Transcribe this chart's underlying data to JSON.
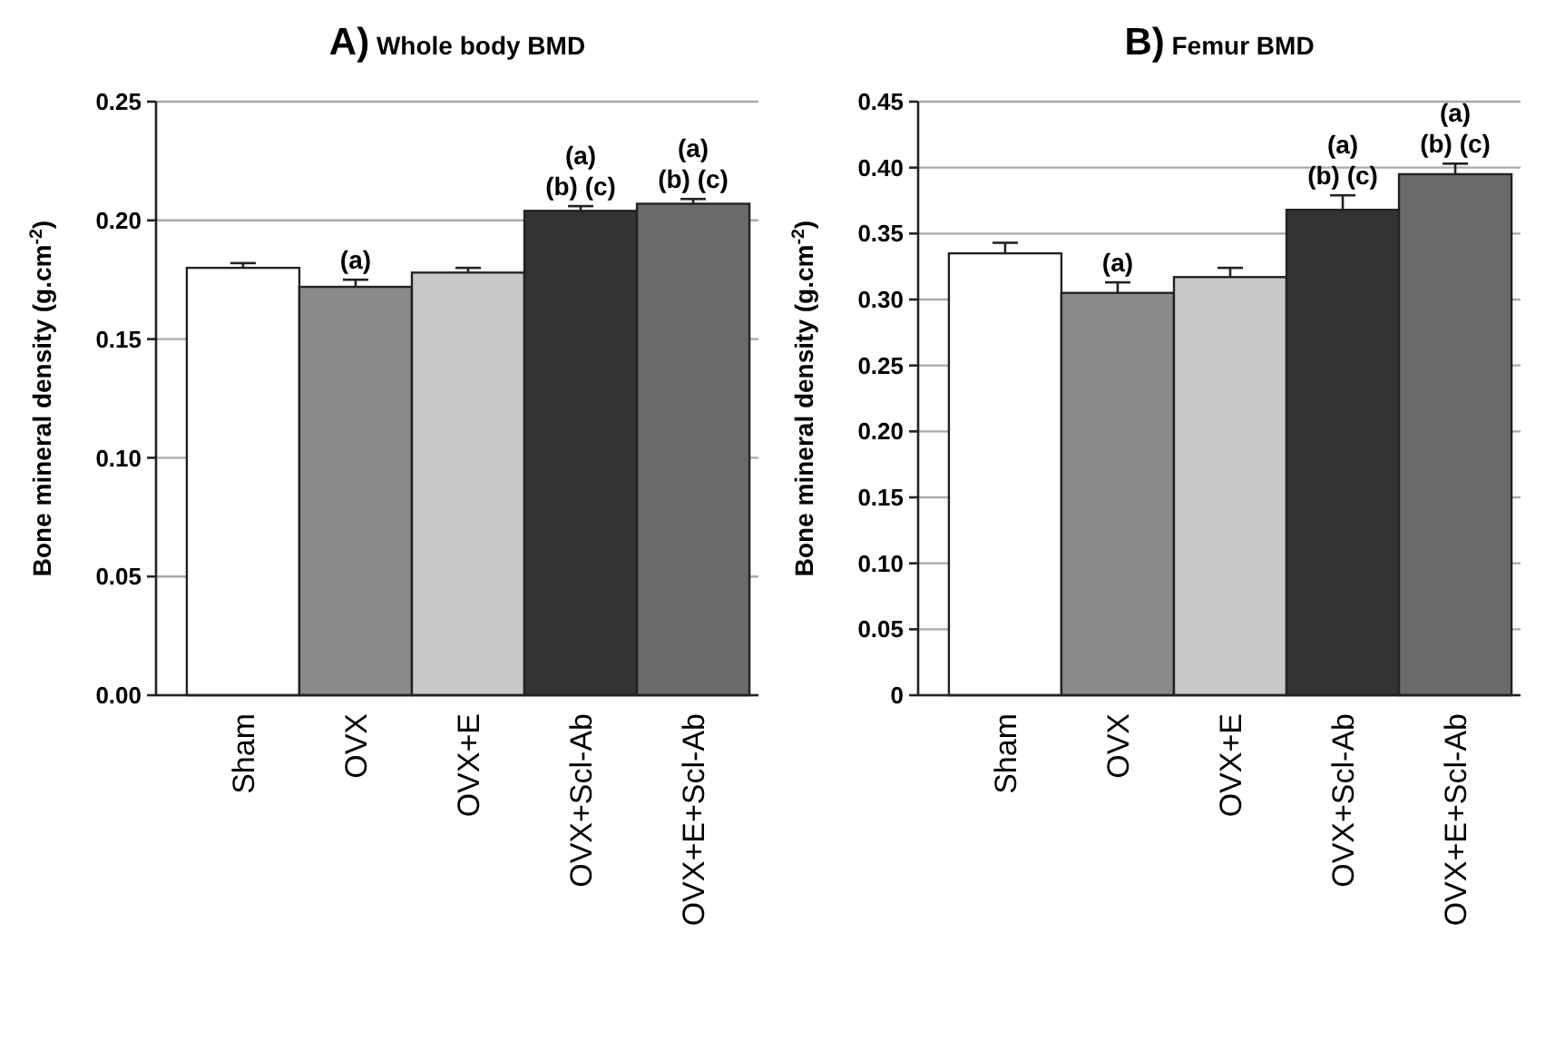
{
  "chart_data": [
    {
      "type": "bar",
      "title": "A) Whole body BMD",
      "ylabel": "Bone mineral density (g.cm$^{-2}$)",
      "categories": [
        "Sham",
        "OVX",
        "OVX+E",
        "OVX+Scl-Ab",
        "OVX+E+Scl-Ab"
      ],
      "values": [
        0.18,
        0.172,
        0.178,
        0.204,
        0.207
      ],
      "errors": [
        0.002,
        0.003,
        0.002,
        0.002,
        0.002
      ],
      "colors": [
        "#ffffff",
        "#8a8a8a",
        "#c8c8c8",
        "#333333",
        "#6a6a6a"
      ],
      "ylim": [
        0,
        0.25
      ],
      "yticks": [
        {
          "value": 0,
          "label": "0.00"
        },
        {
          "value": 0.05,
          "label": "0.05"
        },
        {
          "value": 0.1,
          "label": "0.10"
        },
        {
          "value": 0.15,
          "label": "0.15"
        },
        {
          "value": 0.2,
          "label": "0.20"
        },
        {
          "value": 0.25,
          "label": "0.25"
        }
      ],
      "grid": "y",
      "annotations": [
        {
          "text": "(a)",
          "x": "OVX",
          "y": 0.172
        },
        {
          "text": "(b) (c)",
          "x": "OVX+Scl-Ab",
          "y": 0.204
        },
        {
          "text": "(a)",
          "x": "OVX+Scl-Ab",
          "y": 0.204
        },
        {
          "text": "(b) (c)",
          "x": "OVX+E+Scl-Ab",
          "y": 0.207
        },
        {
          "text": "(a)",
          "x": "OVX+E+Scl-Ab",
          "y": 0.207
        }
      ]
    },
    {
      "type": "bar",
      "title": "B) Femur BMD",
      "ylabel": "Bone mineral density (g.cm$^{-2}$)",
      "categories": [
        "Sham",
        "OVX",
        "OVX+E",
        "OVX+Scl-Ab",
        "OVX+E+Scl-Ab"
      ],
      "values": [
        0.335,
        0.305,
        0.317,
        0.368,
        0.395
      ],
      "errors": [
        0.008,
        0.008,
        0.007,
        0.011,
        0.008
      ],
      "colors": [
        "#ffffff",
        "#8a8a8a",
        "#c8c8c8",
        "#333333",
        "#6a6a6a"
      ],
      "ylim": [
        0,
        0.45
      ],
      "yticks": [
        0,
        0.05,
        {
          "value": 0.1,
          "label": "0.10"
        },
        0.15,
        {
          "value": 0.2,
          "label": "0.20"
        },
        0.25,
        {
          "value": 0.3,
          "label": "0.30"
        },
        0.35,
        {
          "value": 0.4,
          "label": "0.40"
        },
        0.45
      ],
      "grid": "y",
      "annotations": [
        {
          "text": "(a)",
          "x": "OVX",
          "y": 0.305
        },
        {
          "text": "(b) (c)",
          "x": "OVX+Scl-Ab",
          "y": 0.368
        },
        {
          "text": "(a)",
          "x": "OVX+Scl-Ab",
          "y": 0.368
        },
        {
          "text": "(b) (c)",
          "x": "OVX+E+Scl-Ab",
          "y": 0.395
        },
        {
          "text": "(a)",
          "x": "OVX+E+Scl-Ab",
          "y": 0.395
        }
      ]
    }
  ]
}
